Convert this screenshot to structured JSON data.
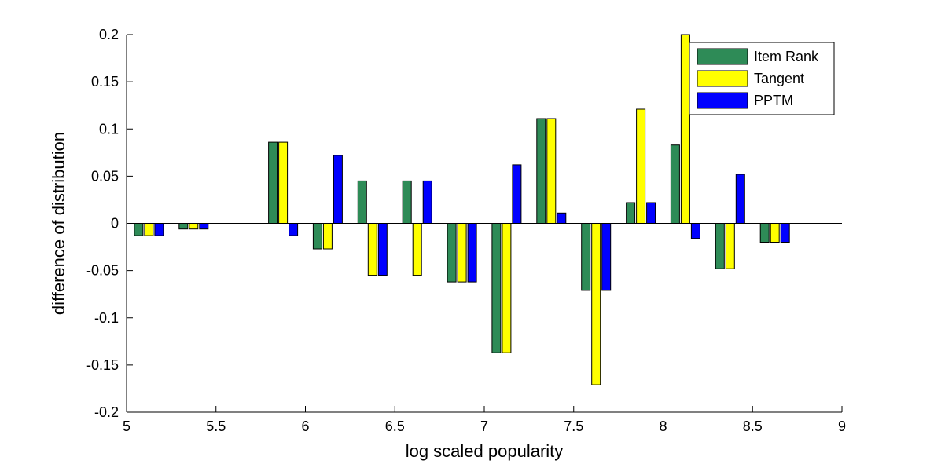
{
  "chart_data": {
    "type": "bar",
    "xlabel": "log scaled popularity",
    "ylabel": "difference of distribution",
    "xlim": [
      5,
      9
    ],
    "ylim": [
      -0.2,
      0.2
    ],
    "xticks": [
      5,
      5.5,
      6,
      6.5,
      7,
      7.5,
      8,
      8.5,
      9
    ],
    "xtick_labels": [
      "5",
      "5.5",
      "6",
      "6.5",
      "7",
      "7.5",
      "8",
      "8.5",
      "9"
    ],
    "yticks": [
      -0.2,
      -0.15,
      -0.1,
      -0.05,
      0,
      0.05,
      0.1,
      0.15,
      0.2
    ],
    "ytick_labels": [
      "-0.2",
      "-0.15",
      "-0.1",
      "-0.05",
      "0",
      "0.05",
      "0.1",
      "0.15",
      "0.2"
    ],
    "legend_position": "top-right",
    "x": [
      5.125,
      5.375,
      5.625,
      5.875,
      6.125,
      6.375,
      6.625,
      6.875,
      7.125,
      7.375,
      7.625,
      7.875,
      8.125,
      8.375,
      8.625
    ],
    "series": [
      {
        "name": "Item Rank",
        "color": "#2e8b57",
        "values": [
          -0.013,
          -0.006,
          0,
          0.086,
          -0.027,
          0.045,
          0.045,
          -0.062,
          -0.137,
          0.111,
          -0.071,
          0.022,
          0.083,
          -0.048,
          -0.02
        ]
      },
      {
        "name": "Tangent",
        "color": "#ffff00",
        "values": [
          -0.013,
          -0.006,
          0,
          0.086,
          -0.027,
          -0.055,
          -0.055,
          -0.062,
          -0.137,
          0.111,
          -0.171,
          0.121,
          0.2,
          -0.048,
          -0.02
        ]
      },
      {
        "name": "PPTM",
        "color": "#0000ff",
        "values": [
          -0.013,
          -0.006,
          0,
          -0.013,
          0.072,
          -0.055,
          0.045,
          -0.062,
          0.062,
          0.011,
          -0.071,
          0.022,
          -0.016,
          0.052,
          -0.02
        ]
      }
    ]
  }
}
